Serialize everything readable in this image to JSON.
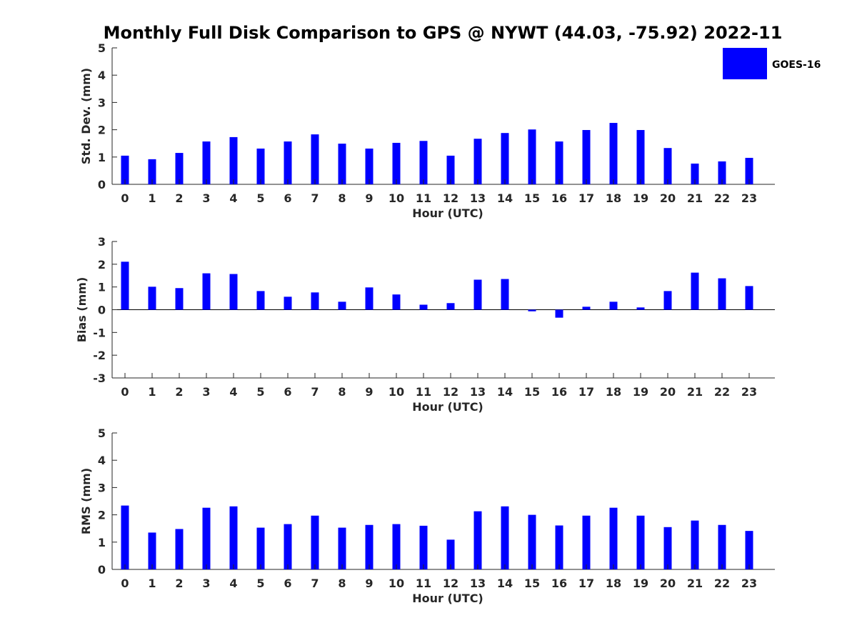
{
  "title": "Monthly Full Disk Comparison to GPS @ NYWT (44.03, -75.92) 2022-11",
  "legend": {
    "label": "GOES-16",
    "color": "#0000ff"
  },
  "chart_data": [
    {
      "type": "bar",
      "series_name": "GOES-16",
      "color": "#0000ff",
      "xlabel": "Hour (UTC)",
      "ylabel": "Std. Dev. (mm)",
      "ylim": [
        0,
        5
      ],
      "yticks": [
        "0",
        "1",
        "2",
        "3",
        "4",
        "5"
      ],
      "categories": [
        "0",
        "1",
        "2",
        "3",
        "4",
        "5",
        "6",
        "7",
        "8",
        "9",
        "10",
        "11",
        "12",
        "13",
        "14",
        "15",
        "16",
        "17",
        "18",
        "19",
        "20",
        "21",
        "22",
        "23"
      ],
      "values": [
        1.05,
        0.92,
        1.15,
        1.57,
        1.73,
        1.31,
        1.57,
        1.83,
        1.49,
        1.31,
        1.52,
        1.59,
        1.05,
        1.67,
        1.88,
        2.01,
        1.57,
        1.99,
        2.25,
        1.99,
        1.33,
        0.76,
        0.84,
        0.97
      ]
    },
    {
      "type": "bar",
      "series_name": "GOES-16",
      "color": "#0000ff",
      "xlabel": "Hour (UTC)",
      "ylabel": "Bias (mm)",
      "ylim": [
        -3,
        3
      ],
      "yticks": [
        "-3",
        "-2",
        "-1",
        "0",
        "1",
        "2",
        "3"
      ],
      "categories": [
        "0",
        "1",
        "2",
        "3",
        "4",
        "5",
        "6",
        "7",
        "8",
        "9",
        "10",
        "11",
        "12",
        "13",
        "14",
        "15",
        "16",
        "17",
        "18",
        "19",
        "20",
        "21",
        "22",
        "23"
      ],
      "values": [
        2.11,
        1.01,
        0.95,
        1.6,
        1.57,
        0.82,
        0.57,
        0.76,
        0.35,
        0.98,
        0.67,
        0.22,
        0.29,
        1.32,
        1.35,
        -0.07,
        -0.35,
        0.13,
        0.35,
        0.1,
        0.82,
        1.63,
        1.38,
        1.04
      ]
    },
    {
      "type": "bar",
      "series_name": "GOES-16",
      "color": "#0000ff",
      "xlabel": "Hour (UTC)",
      "ylabel": "RMS (mm)",
      "ylim": [
        0,
        5
      ],
      "yticks": [
        "0",
        "1",
        "2",
        "3",
        "4",
        "5"
      ],
      "categories": [
        "0",
        "1",
        "2",
        "3",
        "4",
        "5",
        "6",
        "7",
        "8",
        "9",
        "10",
        "11",
        "12",
        "13",
        "14",
        "15",
        "16",
        "17",
        "18",
        "19",
        "20",
        "21",
        "22",
        "23"
      ],
      "values": [
        2.34,
        1.35,
        1.48,
        2.26,
        2.31,
        1.53,
        1.66,
        1.97,
        1.53,
        1.63,
        1.66,
        1.6,
        1.09,
        2.13,
        2.31,
        2.0,
        1.61,
        1.97,
        2.26,
        1.97,
        1.55,
        1.79,
        1.63,
        1.41
      ]
    }
  ]
}
